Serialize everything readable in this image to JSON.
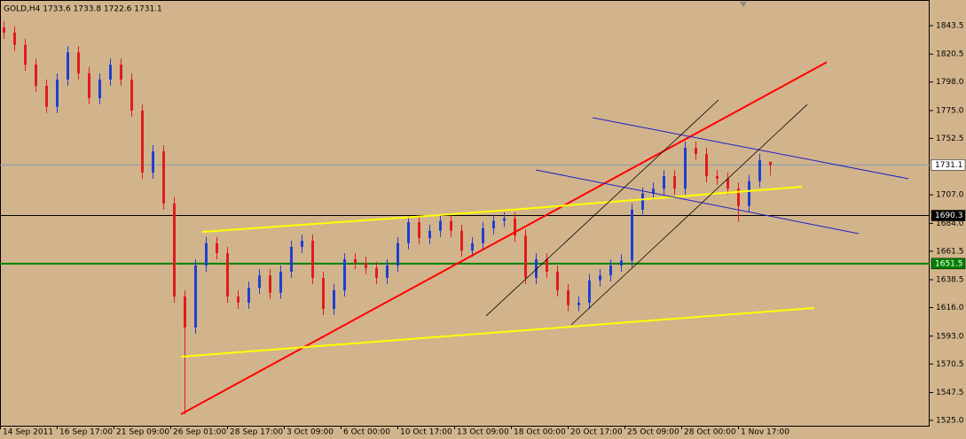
{
  "chart_data": {
    "type": "candlestick",
    "title": "GOLD,H4  1733.6 1733.8 1722.6 1731.1",
    "background": "#d2b48c",
    "up_color": "#1f3fd0",
    "down_color": "#e01c1c",
    "x": [
      1,
      4,
      7,
      10,
      13,
      16,
      19,
      22,
      25,
      28,
      31,
      34,
      37,
      40,
      43,
      46,
      49,
      52,
      55,
      58,
      61,
      64,
      67,
      70,
      73,
      76,
      79,
      82,
      85,
      88,
      91,
      94,
      97,
      100,
      103,
      106,
      109,
      112,
      115,
      118,
      121,
      124,
      127,
      130,
      133,
      136,
      139,
      142,
      145,
      148,
      151,
      154,
      157,
      160,
      163,
      166,
      169,
      172,
      175,
      178,
      181,
      184,
      187,
      190,
      193,
      196,
      199,
      202,
      205,
      208,
      211,
      214,
      217
    ],
    "open": [
      1842,
      1838,
      1828,
      1812,
      1795,
      1778,
      1800,
      1822,
      1805,
      1785,
      1800,
      1812,
      1800,
      1775,
      1725,
      1742,
      1700,
      1625,
      1600,
      1650,
      1668,
      1660,
      1625,
      1620,
      1632,
      1642,
      1628,
      1645,
      1665,
      1670,
      1640,
      1615,
      1630,
      1655,
      1652,
      1648,
      1640,
      1650,
      1668,
      1685,
      1672,
      1678,
      1686,
      1678,
      1662,
      1668,
      1680,
      1686,
      1688,
      1674,
      1640,
      1655,
      1645,
      1630,
      1618,
      1620,
      1638,
      1642,
      1650,
      1654,
      1695,
      1708,
      1712,
      1722,
      1712,
      1745,
      1740,
      1722,
      1720,
      1712,
      1698,
      1718,
      1733.6
    ],
    "high": [
      1847,
      1843,
      1833,
      1817,
      1800,
      1805,
      1827,
      1827,
      1810,
      1805,
      1817,
      1817,
      1805,
      1780,
      1747,
      1747,
      1705,
      1630,
      1655,
      1673,
      1673,
      1665,
      1630,
      1637,
      1647,
      1647,
      1650,
      1670,
      1675,
      1675,
      1645,
      1635,
      1660,
      1660,
      1657,
      1653,
      1655,
      1673,
      1690,
      1690,
      1683,
      1691,
      1691,
      1683,
      1673,
      1685,
      1691,
      1693,
      1693,
      1679,
      1660,
      1660,
      1650,
      1635,
      1625,
      1643,
      1647,
      1655,
      1659,
      1700,
      1713,
      1717,
      1727,
      1727,
      1750,
      1750,
      1745,
      1727,
      1725,
      1717,
      1723,
      1740,
      1733.8
    ],
    "low": [
      1833,
      1823,
      1807,
      1790,
      1773,
      1773,
      1795,
      1800,
      1780,
      1780,
      1795,
      1795,
      1770,
      1720,
      1720,
      1695,
      1620,
      1530,
      1595,
      1645,
      1655,
      1620,
      1615,
      1615,
      1627,
      1623,
      1623,
      1640,
      1660,
      1635,
      1610,
      1610,
      1625,
      1647,
      1643,
      1635,
      1635,
      1645,
      1663,
      1667,
      1667,
      1673,
      1673,
      1657,
      1657,
      1663,
      1675,
      1681,
      1669,
      1635,
      1635,
      1640,
      1625,
      1613,
      1613,
      1615,
      1633,
      1637,
      1645,
      1649,
      1690,
      1703,
      1707,
      1707,
      1707,
      1735,
      1717,
      1715,
      1707,
      1685,
      1693,
      1713,
      1722.6
    ],
    "close": [
      1838,
      1828,
      1812,
      1795,
      1778,
      1800,
      1822,
      1805,
      1785,
      1800,
      1812,
      1800,
      1775,
      1725,
      1742,
      1700,
      1625,
      1600,
      1650,
      1668,
      1660,
      1625,
      1620,
      1632,
      1642,
      1628,
      1645,
      1665,
      1670,
      1640,
      1615,
      1630,
      1655,
      1652,
      1648,
      1640,
      1650,
      1668,
      1685,
      1672,
      1678,
      1686,
      1678,
      1662,
      1668,
      1680,
      1686,
      1688,
      1674,
      1640,
      1655,
      1645,
      1630,
      1618,
      1620,
      1638,
      1642,
      1650,
      1654,
      1695,
      1708,
      1712,
      1722,
      1712,
      1745,
      1740,
      1722,
      1720,
      1712,
      1698,
      1718,
      1735,
      1731.1
    ],
    "xlim": [
      0,
      262
    ],
    "ylim": [
      1520.7,
      1864.2
    ],
    "xticks": [
      {
        "value": 0,
        "label": "14 Sep 2011"
      },
      {
        "value": 16,
        "label": "16 Sep 17:00"
      },
      {
        "value": 32,
        "label": "21 Sep 09:00"
      },
      {
        "value": 48,
        "label": "26 Sep 01:00"
      },
      {
        "value": 64,
        "label": "28 Sep 17:00"
      },
      {
        "value": 80,
        "label": "3 Oct 09:00"
      },
      {
        "value": 96,
        "label": "6 Oct 00:00"
      },
      {
        "value": 112,
        "label": "10 Oct 17:00"
      },
      {
        "value": 128,
        "label": "13 Oct 09:00"
      },
      {
        "value": 144,
        "label": "18 Oct 00:00"
      },
      {
        "value": 160,
        "label": "20 Oct 17:00"
      },
      {
        "value": 176,
        "label": "25 Oct 09:00"
      },
      {
        "value": 192,
        "label": "28 Oct 00:00"
      },
      {
        "value": 208,
        "label": "1 Nov 17:00"
      }
    ],
    "yticks": [
      1843.5,
      1820.5,
      {
        "value": 1798,
        "label": "1798.0"
      },
      {
        "value": 1775,
        "label": "1775.0"
      },
      1752.5,
      {
        "value": 1707,
        "label": "1707.0"
      },
      {
        "value": 1684,
        "label": "1684.0"
      },
      1661.5,
      1638.5,
      {
        "value": 1616,
        "label": "1616.0"
      },
      {
        "value": 1593,
        "label": "1593.0"
      },
      1570.5,
      1547.5,
      {
        "value": 1525,
        "label": "1525.0"
      }
    ],
    "hlines": [
      {
        "value": 1731.1,
        "color": "#8c9aa8",
        "label_bg": "#ffffff",
        "label_color": "#000000"
      },
      {
        "value": 1690.3,
        "color": "#000000",
        "label_bg": "#000000",
        "label_color": "#ffffff"
      },
      {
        "value": 1651.5,
        "color": "#008000",
        "label_bg": "#008000",
        "label_color": "#ffffff"
      }
    ],
    "lines": [
      {
        "color": "#ff0000",
        "width": 2,
        "x": [
          51,
          233
        ],
        "y": [
          1530,
          1814
        ]
      },
      {
        "color": "#ffff00",
        "width": 2,
        "x": [
          57,
          141
        ],
        "y": [
          1677.1,
          1694.2
        ]
      },
      {
        "color": "#ffff00",
        "width": 2,
        "x": [
          141,
          226
        ],
        "y": [
          1694.2,
          1713.5
        ]
      },
      {
        "color": "#ffff00",
        "width": 2,
        "x": [
          51,
          229.5
        ],
        "y": [
          1576.4,
          1615.7
        ]
      },
      {
        "color": "#2020c8",
        "width": 1,
        "x": [
          167,
          256
        ],
        "y": [
          1769.2,
          1720
        ]
      },
      {
        "color": "#2020c8",
        "width": 1,
        "x": [
          151,
          242
        ],
        "y": [
          1727.1,
          1675.7
        ]
      },
      {
        "color": "#000000",
        "width": 0.8,
        "x": [
          137,
          202.5
        ],
        "y": [
          1609.3,
          1783.5
        ]
      },
      {
        "color": "#000000",
        "width": 0.8,
        "x": [
          161,
          227.5
        ],
        "y": [
          1602.1,
          1779.9
        ]
      }
    ]
  }
}
